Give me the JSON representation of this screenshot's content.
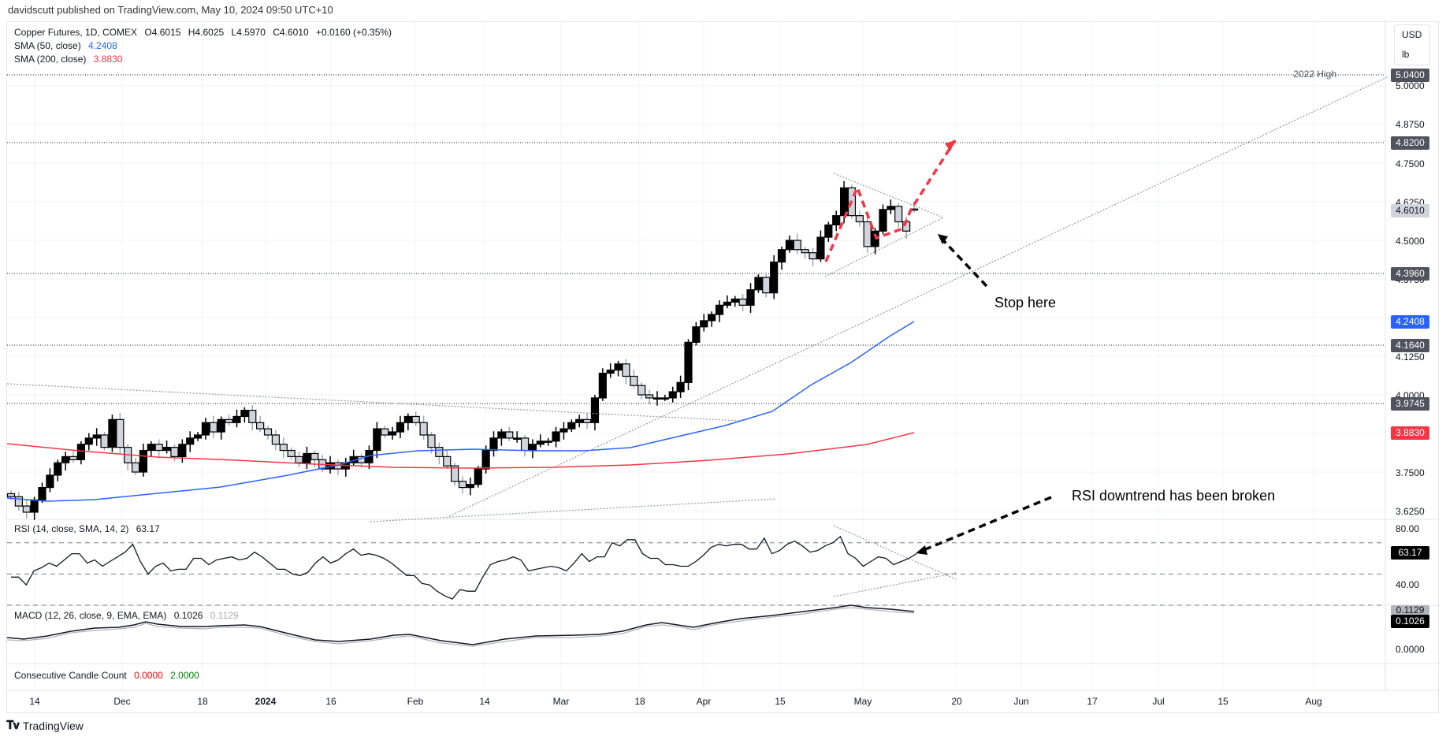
{
  "header": {
    "published_by": "davidscutt published on TradingView.com, May 10, 2024 09:50 UTC+10"
  },
  "legend": {
    "symbol_line": "Copper Futures, 1D, COMEX",
    "open_label": "O",
    "open": "4.6015",
    "high_label": "H",
    "high": "4.6025",
    "low_label": "L",
    "low": "4.5970",
    "close_label": "C",
    "close": "4.6010",
    "change": "+0.0160 (+0.35%)",
    "sma50_label": "SMA (50, close)",
    "sma50_value": "4.2408",
    "sma200_label": "SMA (200, close)",
    "sma200_value": "3.8830",
    "rsi_label": "RSI (14, close, SMA, 14, 2)",
    "rsi_value": "63.17",
    "macd_label": "MACD (12, 26, close, 9, EMA, EMA)",
    "macd_value": "0.1026",
    "macd_signal_value": "0.1129",
    "ccc_label": "Consecutive Candle Count",
    "ccc_value1": "0.0000",
    "ccc_value2": "2.0000"
  },
  "units": {
    "currency": "USD",
    "unit": "lb"
  },
  "colors": {
    "sma50": "#2962ff",
    "sma200": "#f23645",
    "level_label_bg": "#50535e",
    "current_price_bg": "#d1d4dc",
    "annotation_red": "#f23645",
    "bull_candle": "#000000",
    "bear_candle": "#d1d4dc",
    "ccc_red": "#ff0000",
    "ccc_green": "#008000"
  },
  "price_axis": {
    "ticks": [
      "5.0000",
      "4.8750",
      "4.7500",
      "4.6250",
      "4.5000",
      "4.3750",
      "4.1250",
      "4.0000",
      "3.7500",
      "3.6250"
    ],
    "labels": [
      {
        "text": "5.0400",
        "kind": "level",
        "note": "2022 High"
      },
      {
        "text": "4.8200",
        "kind": "level"
      },
      {
        "text": "4.6010",
        "kind": "current"
      },
      {
        "text": "4.3960",
        "kind": "level"
      },
      {
        "text": "4.2408",
        "kind": "sma50"
      },
      {
        "text": "4.1640",
        "kind": "level"
      },
      {
        "text": "3.9745",
        "kind": "level"
      },
      {
        "text": "3.8830",
        "kind": "sma200"
      }
    ]
  },
  "rsi_axis": {
    "ticks": [
      "80.00",
      "40.00"
    ],
    "current": "63.17"
  },
  "macd_axis": {
    "ticks": [
      "0.0000"
    ],
    "macd": "0.1026",
    "signal": "0.1129"
  },
  "time_axis": {
    "labels": [
      "14",
      "Dec",
      "18",
      "2024",
      "16",
      "Feb",
      "14",
      "Mar",
      "18",
      "Apr",
      "15",
      "May",
      "20",
      "Jun",
      "17",
      "Jul",
      "15",
      "Aug"
    ]
  },
  "annotations": {
    "level_2022_high": "2022 High",
    "stop_here": "Stop here",
    "rsi_break": "RSI downtrend has been broken"
  },
  "footer": {
    "brand": "TradingView"
  },
  "chart_data": [
    {
      "type": "candlestick",
      "title": "Copper Futures, 1D, COMEX",
      "ylabel": "USD / lb",
      "ylim": [
        3.6,
        5.07
      ],
      "x_ticks": [
        "14",
        "Dec",
        "18",
        "2024",
        "16",
        "Feb",
        "14",
        "Mar",
        "18",
        "Apr",
        "15",
        "May",
        "20",
        "Jun",
        "17",
        "Jul",
        "15",
        "Aug"
      ],
      "last": {
        "open": 4.6015,
        "high": 4.6025,
        "low": 4.597,
        "close": 4.601,
        "change": 0.016,
        "change_pct": 0.35
      },
      "closes_approx": [
        3.67,
        3.64,
        3.62,
        3.66,
        3.7,
        3.74,
        3.78,
        3.8,
        3.79,
        3.84,
        3.86,
        3.87,
        3.83,
        3.92,
        3.83,
        3.78,
        3.75,
        3.82,
        3.84,
        3.82,
        3.83,
        3.8,
        3.84,
        3.86,
        3.87,
        3.91,
        3.88,
        3.92,
        3.91,
        3.93,
        3.95,
        3.91,
        3.89,
        3.87,
        3.84,
        3.82,
        3.8,
        3.78,
        3.81,
        3.79,
        3.76,
        3.78,
        3.76,
        3.78,
        3.8,
        3.78,
        3.82,
        3.89,
        3.87,
        3.88,
        3.91,
        3.93,
        3.91,
        3.87,
        3.83,
        3.8,
        3.77,
        3.72,
        3.7,
        3.71,
        3.76,
        3.82,
        3.86,
        3.88,
        3.86,
        3.86,
        3.82,
        3.84,
        3.85,
        3.85,
        3.88,
        3.89,
        3.91,
        3.92,
        3.91,
        3.99,
        4.07,
        4.08,
        4.1,
        4.06,
        4.03,
        4.0,
        3.99,
        3.99,
        3.99,
        4.01,
        4.04,
        4.17,
        4.22,
        4.24,
        4.26,
        4.29,
        4.3,
        4.31,
        4.29,
        4.34,
        4.38,
        4.33,
        4.43,
        4.47,
        4.5,
        4.47,
        4.46,
        4.44,
        4.51,
        4.55,
        4.58,
        4.67,
        4.58,
        4.56,
        4.48,
        4.53,
        4.6,
        4.61,
        4.56,
        4.53,
        4.6
      ],
      "annotations": [
        "2022 High 5.0400",
        "4.8200",
        "4.3960",
        "4.1640",
        "3.9745",
        "Stop here",
        "symmetrical triangle with red dashed projected path"
      ]
    },
    {
      "type": "line",
      "name": "SMA (50, close)",
      "last": 4.2408,
      "color": "#2962ff"
    },
    {
      "type": "line",
      "name": "SMA (200, close)",
      "last": 3.883,
      "color": "#f23645"
    },
    {
      "type": "line",
      "title": "RSI (14, close, SMA, 14, 2)",
      "ylim": [
        30,
        85
      ],
      "levels": [
        70,
        50,
        30
      ],
      "last": 63.17,
      "values_approx": [
        48,
        48,
        43,
        52,
        54,
        57,
        55,
        59,
        63,
        63,
        57,
        59,
        55,
        58,
        61,
        64,
        69,
        58,
        50,
        55,
        57,
        52,
        53,
        53,
        60,
        60,
        56,
        59,
        60,
        61,
        59,
        60,
        64,
        61,
        57,
        53,
        53,
        50,
        49,
        51,
        57,
        61,
        57,
        59,
        63,
        66,
        62,
        63,
        62,
        60,
        57,
        53,
        49,
        49,
        44,
        43,
        39,
        36,
        34,
        40,
        39,
        39,
        48,
        56,
        58,
        59,
        61,
        59,
        52,
        53,
        54,
        55,
        54,
        52,
        57,
        63,
        58,
        61,
        61,
        70,
        68,
        72,
        72,
        63,
        60,
        60,
        56,
        56,
        55,
        55,
        58,
        62,
        67,
        69,
        68,
        69,
        69,
        66,
        66,
        73,
        63,
        65,
        69,
        71,
        68,
        64,
        65,
        68,
        70,
        74,
        63,
        60,
        55,
        58,
        61,
        60,
        56,
        58,
        60,
        63
      ],
      "annotation": "RSI downtrend has been broken"
    },
    {
      "type": "line",
      "title": "MACD (12, 26, close, 9, EMA, EMA)",
      "series": [
        {
          "name": "MACD",
          "last": 0.1026
        },
        {
          "name": "Signal",
          "last": 0.1129
        }
      ],
      "yticks": [
        "0.0000"
      ]
    }
  ]
}
